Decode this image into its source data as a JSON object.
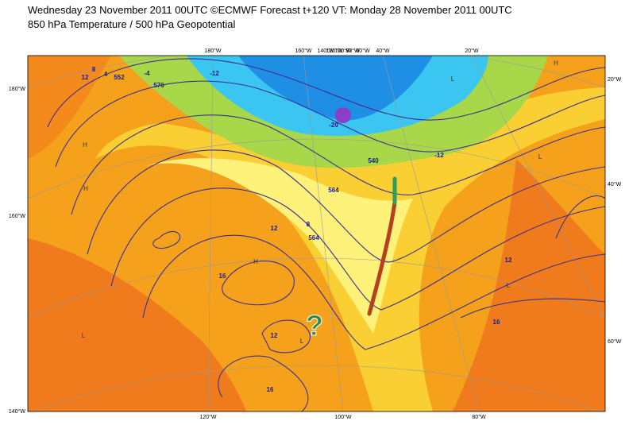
{
  "header": {
    "line1": "Wednesday 23 November 2011 00UTC ©ECMWF Forecast t+120 VT: Monday 28 November 2011 00UTC",
    "line2": "850 hPa Temperature / 500 hPa Geopotential"
  },
  "map": {
    "top_labels": [
      "180°W",
      "160°W",
      "140°W",
      "120°W",
      "100°W",
      "80°W",
      "60°W",
      "40°W",
      "20°W"
    ],
    "bottom_labels": [
      "120°W",
      "100°W",
      "80°W"
    ],
    "left_labels": [
      "180°W",
      "160°W",
      "140°W"
    ],
    "right_labels": [
      "20°W",
      "40°W",
      "60°W"
    ],
    "contour_labels": [
      "12",
      "8",
      "4",
      "-4",
      "552",
      "576",
      "-12",
      "-20",
      "540",
      "564",
      "12",
      "16",
      "12",
      "16",
      "8",
      "564",
      "12",
      "16",
      "-12"
    ],
    "centers": [
      "H",
      "H",
      "H",
      "L",
      "L",
      "L",
      "H",
      "L",
      "L"
    ],
    "annotation": "?"
  }
}
